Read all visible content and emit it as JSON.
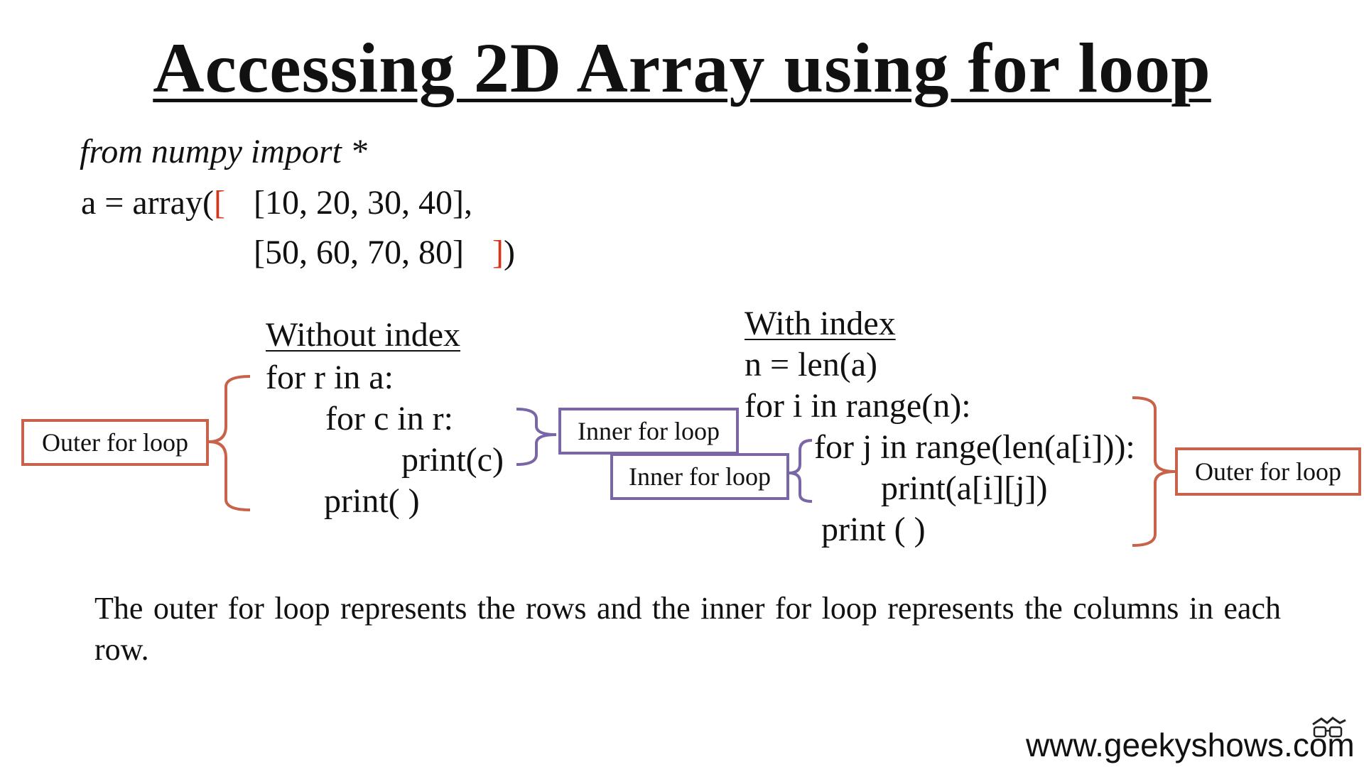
{
  "title": "Accessing 2D Array using for loop",
  "code_top": {
    "line1": "from numpy import *",
    "line2_prefix": "a = array(",
    "line2_bracket": "[",
    "line2_row": "[10, 20, 30, 40],",
    "line3_row": "[50, 60, 70, 80]",
    "line3_bracket": "]",
    "line3_suffix": ")"
  },
  "without_index": {
    "heading": "Without index",
    "lines": [
      "for r in a:",
      "for c in r:",
      "print(c)",
      "print( )"
    ]
  },
  "with_index": {
    "heading": "With index",
    "lines": [
      "n = len(a)",
      "for i in range(n):",
      "for j in range(len(a[i])):",
      "print(a[i][j])",
      "print ( )"
    ]
  },
  "labels": {
    "outer_left": "Outer for loop",
    "inner_left": "Inner for loop",
    "inner_right": "Inner for loop",
    "outer_right": "Outer for loop"
  },
  "note": "The outer for loop represents the rows and the inner for loop represents the columns in each row.",
  "watermark": "www.geekyshows.com",
  "colors": {
    "outer": "#c8624a",
    "inner": "#7a66a6",
    "bracket_red": "#d2371c"
  }
}
